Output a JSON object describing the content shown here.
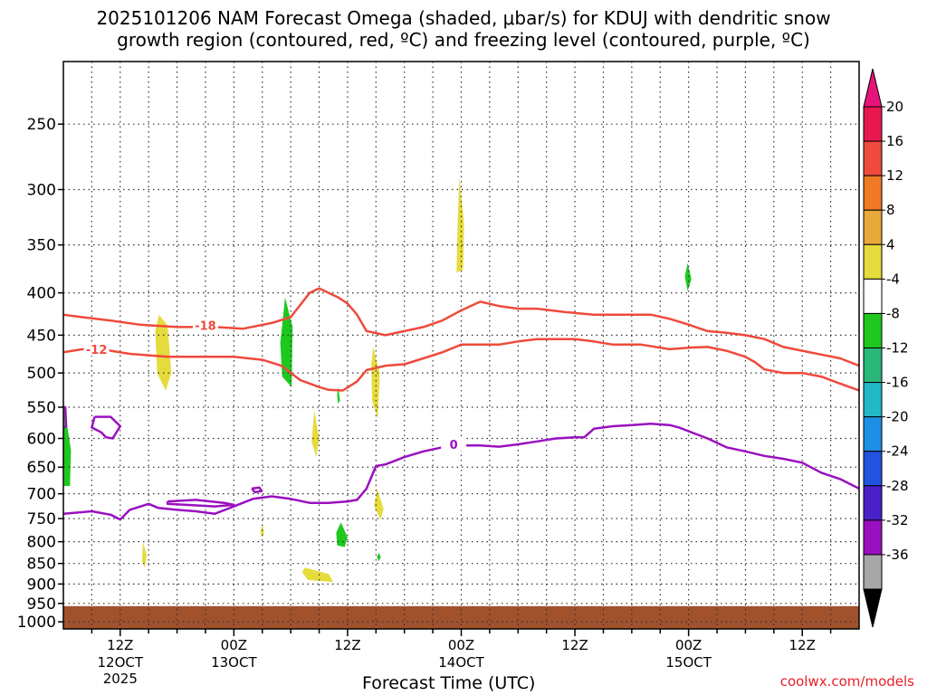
{
  "title": {
    "line1": "2025101206 NAM Forecast Omega (shaded, μbar/s) for KDUJ with dendritic snow",
    "line2": "growth region (contoured, red, ºC) and freezing level (contoured, purple, ºC)"
  },
  "credit": "coolwx.com/models",
  "chart_data": {
    "type": "heatmap",
    "title": "2025101206 NAM Forecast Omega (shaded, μbar/s) for KDUJ with dendritic snow growth region (contoured, red, ºC) and freezing level (contoured, purple, ºC)",
    "xlabel": "Forecast Time (UTC)",
    "ylabel": "",
    "x_unit": "forecast hours from 2025-10-12 06Z",
    "xlim": [
      0,
      84
    ],
    "y_scale": "log",
    "ylim": [
      1000,
      200
    ],
    "grid": true,
    "x_ticks": [
      {
        "hour": 6,
        "label": "12Z",
        "sub": "12OCT",
        "sub2": "2025"
      },
      {
        "hour": 18,
        "label": "00Z",
        "sub": "13OCT",
        "sub2": ""
      },
      {
        "hour": 30,
        "label": "12Z",
        "sub": "",
        "sub2": ""
      },
      {
        "hour": 42,
        "label": "00Z",
        "sub": "14OCT",
        "sub2": ""
      },
      {
        "hour": 54,
        "label": "12Z",
        "sub": "",
        "sub2": ""
      },
      {
        "hour": 66,
        "label": "00Z",
        "sub": "15OCT",
        "sub2": ""
      },
      {
        "hour": 78,
        "label": "12Z",
        "sub": "",
        "sub2": ""
      }
    ],
    "y_ticks": [
      250,
      300,
      350,
      400,
      450,
      500,
      550,
      600,
      650,
      700,
      750,
      800,
      850,
      900,
      950,
      1000
    ],
    "colorbar": {
      "labels": [
        "20",
        "16",
        "12",
        "8",
        "4",
        "-4",
        "-8",
        "-12",
        "-16",
        "-20",
        "-24",
        "-28",
        "-32",
        "-36"
      ],
      "colors": [
        "#e8174f",
        "#ef4a3c",
        "#f07a24",
        "#e8a83a",
        "#e6db3c",
        "#ffffff",
        "#1fc81f",
        "#2ab87a",
        "#22b8c8",
        "#1e8fe6",
        "#2252e0",
        "#4a20c8",
        "#9a10c0",
        "#a8a8a8"
      ],
      "over_color": "#e8137a",
      "under_color": "#000000"
    },
    "ground": {
      "color": "#a0522d",
      "from_pressure": 950
    },
    "omega_areas": [
      {
        "color": "#e6db3c",
        "pts": [
          [
            10.1,
            425
          ],
          [
            11.0,
            438
          ],
          [
            11.4,
            500
          ],
          [
            10.8,
            525
          ],
          [
            9.9,
            500
          ],
          [
            9.7,
            445
          ]
        ]
      },
      {
        "color": "#1fc81f",
        "pts": [
          [
            23.4,
            405
          ],
          [
            24.2,
            440
          ],
          [
            24.1,
            520
          ],
          [
            23.1,
            505
          ],
          [
            22.9,
            460
          ]
        ]
      },
      {
        "color": "#e6db3c",
        "pts": [
          [
            41.8,
            290
          ],
          [
            42.3,
            330
          ],
          [
            42.2,
            375
          ],
          [
            41.5,
            378
          ],
          [
            41.6,
            335
          ]
        ]
      },
      {
        "color": "#e6db3c",
        "pts": [
          [
            32.7,
            465
          ],
          [
            33.4,
            500
          ],
          [
            33.2,
            568
          ],
          [
            32.6,
            540
          ],
          [
            32.5,
            490
          ]
        ]
      },
      {
        "color": "#1fc81f",
        "pts": [
          [
            0.0,
            540
          ],
          [
            0.8,
            620
          ],
          [
            0.7,
            685
          ],
          [
            0.1,
            685
          ],
          [
            0.0,
            600
          ]
        ]
      },
      {
        "color": "#1fc81f",
        "pts": [
          [
            65.9,
            368
          ],
          [
            66.3,
            385
          ],
          [
            65.9,
            398
          ],
          [
            65.6,
            382
          ]
        ]
      },
      {
        "color": "#1fc81f",
        "pts": [
          [
            29.0,
            520
          ],
          [
            29.2,
            540
          ],
          [
            29.0,
            545
          ],
          [
            28.9,
            532
          ]
        ]
      },
      {
        "color": "#e6db3c",
        "pts": [
          [
            26.5,
            555
          ],
          [
            27.0,
            600
          ],
          [
            26.7,
            632
          ],
          [
            26.2,
            605
          ]
        ]
      },
      {
        "color": "#e6db3c",
        "pts": [
          [
            33.1,
            690
          ],
          [
            33.8,
            730
          ],
          [
            33.5,
            752
          ],
          [
            32.8,
            725
          ]
        ]
      },
      {
        "color": "#1fc81f",
        "pts": [
          [
            29.3,
            758
          ],
          [
            30.0,
            790
          ],
          [
            29.7,
            812
          ],
          [
            28.9,
            808
          ],
          [
            28.8,
            780
          ]
        ]
      },
      {
        "color": "#e6db3c",
        "pts": [
          [
            8.4,
            800
          ],
          [
            8.8,
            830
          ],
          [
            8.6,
            860
          ],
          [
            8.3,
            845
          ]
        ]
      },
      {
        "color": "#e6db3c",
        "pts": [
          [
            25.5,
            860
          ],
          [
            28.0,
            875
          ],
          [
            28.5,
            895
          ],
          [
            25.8,
            890
          ],
          [
            25.2,
            870
          ]
        ]
      },
      {
        "color": "#e6db3c",
        "pts": [
          [
            21.0,
            762
          ],
          [
            21.2,
            780
          ],
          [
            21.0,
            792
          ],
          [
            20.8,
            778
          ]
        ]
      },
      {
        "color": "#1fc81f",
        "pts": [
          [
            33.3,
            825
          ],
          [
            33.5,
            835
          ],
          [
            33.3,
            845
          ],
          [
            33.1,
            835
          ]
        ]
      }
    ],
    "contours": [
      {
        "label": "-18",
        "color": "#ef4a3c",
        "label_at": [
          15.0,
          438
        ],
        "pts": [
          [
            0,
            425
          ],
          [
            2,
            428
          ],
          [
            5,
            432
          ],
          [
            8,
            437
          ],
          [
            12,
            440
          ],
          [
            16,
            440
          ],
          [
            19,
            442
          ],
          [
            22,
            435
          ],
          [
            24,
            428
          ],
          [
            26,
            400
          ],
          [
            27,
            395
          ],
          [
            29,
            405
          ],
          [
            30,
            412
          ],
          [
            31,
            425
          ],
          [
            32,
            445
          ],
          [
            34,
            450
          ],
          [
            36,
            445
          ],
          [
            38,
            440
          ],
          [
            40,
            432
          ],
          [
            42,
            420
          ],
          [
            44,
            410
          ],
          [
            46,
            415
          ],
          [
            48,
            418
          ],
          [
            50,
            418
          ],
          [
            53,
            422
          ],
          [
            56,
            425
          ],
          [
            59,
            425
          ],
          [
            62,
            425
          ],
          [
            64,
            430
          ],
          [
            66,
            437
          ],
          [
            68,
            445
          ],
          [
            70,
            447
          ],
          [
            72,
            450
          ],
          [
            74,
            455
          ],
          [
            76,
            465
          ],
          [
            78,
            470
          ],
          [
            80,
            475
          ],
          [
            82,
            480
          ],
          [
            84,
            490
          ]
        ]
      },
      {
        "label": "-12",
        "color": "#ef4a3c",
        "label_at": [
          3.5,
          468
        ],
        "pts": [
          [
            0,
            472
          ],
          [
            2,
            468
          ],
          [
            4,
            468
          ],
          [
            7,
            474
          ],
          [
            11,
            478
          ],
          [
            15,
            478
          ],
          [
            18,
            478
          ],
          [
            21,
            482
          ],
          [
            23,
            490
          ],
          [
            25,
            510
          ],
          [
            27,
            520
          ],
          [
            28,
            524
          ],
          [
            29.5,
            525
          ],
          [
            31,
            512
          ],
          [
            32,
            496
          ],
          [
            34,
            490
          ],
          [
            36,
            488
          ],
          [
            38,
            480
          ],
          [
            40,
            472
          ],
          [
            42,
            462
          ],
          [
            44,
            462
          ],
          [
            46,
            462
          ],
          [
            48,
            458
          ],
          [
            50,
            455
          ],
          [
            52,
            455
          ],
          [
            54,
            455
          ],
          [
            56,
            458
          ],
          [
            58,
            462
          ],
          [
            61,
            462
          ],
          [
            64,
            468
          ],
          [
            66,
            466
          ],
          [
            68,
            465
          ],
          [
            70,
            470
          ],
          [
            72,
            478
          ],
          [
            73,
            485
          ],
          [
            74,
            495
          ],
          [
            76,
            500
          ],
          [
            78,
            500
          ],
          [
            80,
            505
          ],
          [
            82,
            515
          ],
          [
            84,
            525
          ]
        ]
      },
      {
        "label": "0",
        "color": "#9a10c0",
        "label_at": [
          41.2,
          610
        ],
        "pts": [
          [
            0,
            740
          ],
          [
            3,
            735
          ],
          [
            5,
            742
          ],
          [
            6,
            752
          ],
          [
            7,
            732
          ],
          [
            9,
            720
          ],
          [
            10,
            728
          ],
          [
            12,
            732
          ],
          [
            14,
            735
          ],
          [
            16,
            740
          ],
          [
            18,
            725
          ],
          [
            20,
            710
          ],
          [
            22,
            705
          ],
          [
            24,
            710
          ],
          [
            26,
            718
          ],
          [
            28,
            718
          ],
          [
            30,
            715
          ],
          [
            31,
            712
          ],
          [
            32,
            690
          ],
          [
            33,
            648
          ],
          [
            34,
            645
          ],
          [
            36,
            632
          ],
          [
            38,
            622
          ],
          [
            40,
            615
          ],
          [
            42,
            612
          ],
          [
            44,
            612
          ],
          [
            46,
            614
          ],
          [
            48,
            610
          ],
          [
            50,
            605
          ],
          [
            52,
            600
          ],
          [
            54,
            598
          ],
          [
            55,
            598
          ],
          [
            56,
            584
          ],
          [
            58,
            580
          ],
          [
            60,
            578
          ],
          [
            62,
            576
          ],
          [
            64,
            578
          ],
          [
            65,
            582
          ],
          [
            66,
            588
          ],
          [
            68,
            600
          ],
          [
            70,
            615
          ],
          [
            72,
            622
          ],
          [
            74,
            630
          ],
          [
            76,
            635
          ],
          [
            78,
            642
          ],
          [
            80,
            660
          ],
          [
            82,
            672
          ],
          [
            84,
            690
          ]
        ]
      },
      {
        "label": "",
        "color": "#9a10c0",
        "label_at": null,
        "pts": [
          [
            3.3,
            565
          ],
          [
            5.0,
            565
          ],
          [
            6.0,
            580
          ],
          [
            5.2,
            600
          ],
          [
            4.5,
            598
          ],
          [
            4.0,
            590
          ],
          [
            3.0,
            582
          ],
          [
            3.3,
            565
          ]
        ]
      },
      {
        "label": "",
        "color": "#9a10c0",
        "label_at": null,
        "pts": [
          [
            11,
            715
          ],
          [
            14,
            712
          ],
          [
            17,
            718
          ],
          [
            18,
            722
          ],
          [
            16,
            725
          ],
          [
            13,
            722
          ],
          [
            11,
            720
          ],
          [
            11,
            715
          ]
        ]
      },
      {
        "label": "",
        "color": "#9a10c0",
        "label_at": null,
        "pts": [
          [
            19.9,
            690
          ],
          [
            20.7,
            688
          ],
          [
            20.9,
            695
          ],
          [
            20.2,
            697
          ],
          [
            19.9,
            690
          ]
        ]
      },
      {
        "label": "",
        "color": "#9a10c0",
        "label_at": null,
        "pts": [
          [
            -0.3,
            550
          ],
          [
            0.2,
            550
          ],
          [
            0.3,
            580
          ],
          [
            -0.2,
            585
          ],
          [
            -0.3,
            550
          ]
        ]
      }
    ]
  }
}
